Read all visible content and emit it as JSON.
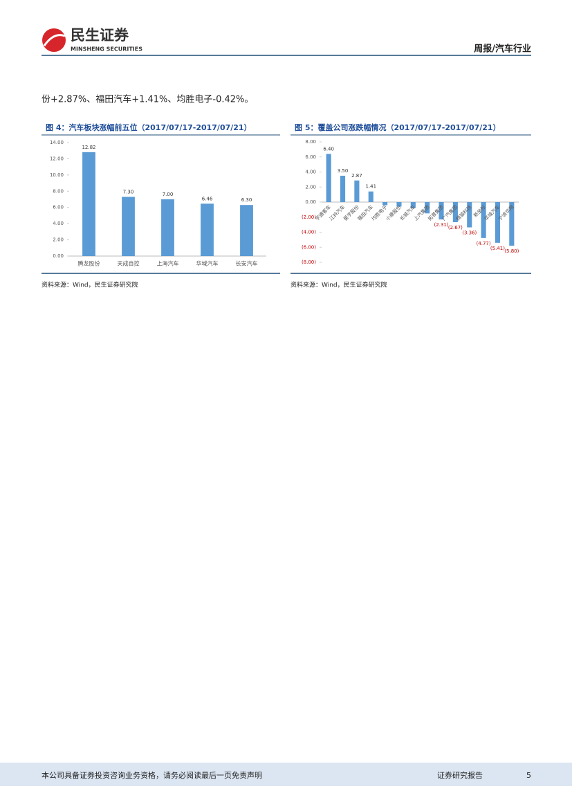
{
  "header": {
    "logo": "民生证券",
    "logo_en": "MINSHENG SECURITIES",
    "section": "周报/汽车行业"
  },
  "text": "份+2.87%、福田汽车+1.41%、均胜电子-0.42%。",
  "figures": [
    {
      "title": "图 4：汽车板块涨幅前五位（2017/07/17-2017/07/21）",
      "source": "资料来源：Wind，民生证券研究院"
    },
    {
      "title": "图 5：覆盖公司涨跌幅情况（2017/07/17-2017/07/21）",
      "source": "资料来源：Wind，民生证券研究院"
    }
  ],
  "chart_data": [
    {
      "type": "bar",
      "color": "#5b9bd5",
      "categories": [
        "腾龙股份",
        "天成自控",
        "上海汽车",
        "华域汽车",
        "长安汽车"
      ],
      "values": [
        12.82,
        7.3,
        7.0,
        6.46,
        6.3
      ],
      "value_labels": [
        "12.82",
        "7.30",
        "7.00",
        "6.46",
        "6.30"
      ],
      "ylim": [
        0,
        14
      ],
      "yticks": [
        {
          "value": 0,
          "label": "0.00"
        },
        {
          "value": 2,
          "label": "2.00"
        },
        {
          "value": 4,
          "label": "4.00"
        },
        {
          "value": 6,
          "label": "6.00"
        },
        {
          "value": 8,
          "label": "8.00"
        },
        {
          "value": 10,
          "label": "10.00"
        },
        {
          "value": 12,
          "label": "12.00"
        },
        {
          "value": 14,
          "label": "14.00"
        }
      ]
    },
    {
      "type": "bar",
      "color": "#5b9bd5",
      "categories": [
        "宇通客车",
        "江铃汽车",
        "星宇股份",
        "福田汽车",
        "均胜电子",
        "小康股份",
        "长城汽车",
        "上汽集团",
        "拓普集团",
        "广汽集团",
        "精锻科技",
        "新坐标",
        "华域汽车",
        "宁波华翔"
      ],
      "values": [
        6.4,
        3.5,
        2.87,
        1.41,
        -0.42,
        -0.6,
        -0.8,
        -1.5,
        -2.31,
        -2.67,
        -3.36,
        -4.77,
        -5.41,
        -5.8
      ],
      "value_labels": [
        "6.40",
        "3.50",
        "2.87",
        "1.41",
        null,
        null,
        null,
        null,
        "(2.31)",
        "(2.67)",
        "(3.36)",
        "(4.77)",
        "(5.41)",
        "(5.80)"
      ],
      "ylim": [
        -8,
        8
      ],
      "yticks": [
        {
          "value": -8,
          "label": "(8.00)"
        },
        {
          "value": -6,
          "label": "(6.00)"
        },
        {
          "value": -4,
          "label": "(4.00)"
        },
        {
          "value": -2,
          "label": "(2.00)"
        },
        {
          "value": 0,
          "label": "0.00"
        },
        {
          "value": 2,
          "label": "2.00"
        },
        {
          "value": 4,
          "label": "4.00"
        },
        {
          "value": 6,
          "label": "6.00"
        },
        {
          "value": 8,
          "label": "8.00"
        }
      ]
    }
  ],
  "footer": {
    "disclaimer": "本公司具备证券投资咨询业务资格，请务必阅读最后一页免责声明",
    "type": "证券研究报告",
    "page": "5"
  }
}
